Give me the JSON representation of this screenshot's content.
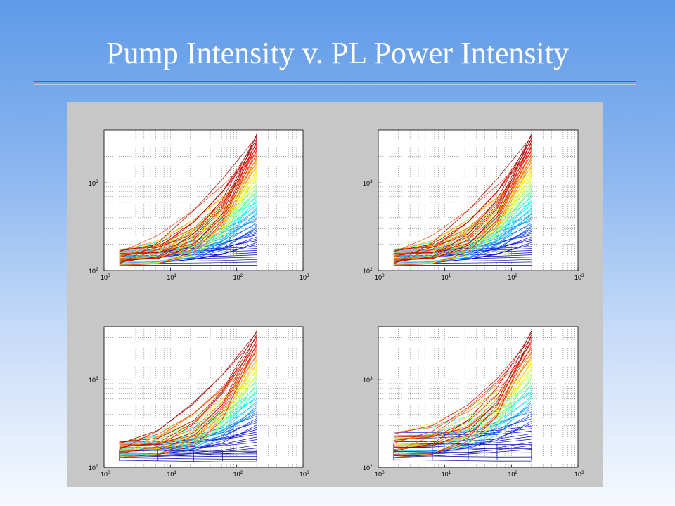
{
  "slide": {
    "title": "Pump Intensity v. PL Power Intensity",
    "rule_colors": [
      "#d3332b",
      "#b8c8e2"
    ]
  },
  "figure": {
    "background": "#c7c7c7",
    "axes_background": "#ffffff",
    "grid": "dotted major and minor (log)"
  },
  "chart_data": [
    {
      "type": "line",
      "panel": "top-left",
      "xscale": "log",
      "yscale": "log",
      "xlim": [
        1,
        1000
      ],
      "ylim": [
        100,
        4000
      ],
      "xticks": [
        1,
        10,
        100,
        1000
      ],
      "xtick_labels": [
        "10^0",
        "10^1",
        "10^2",
        "10^3"
      ],
      "yticks": [
        100,
        1000
      ],
      "ytick_labels": [
        "10^2",
        "10^3"
      ],
      "x_breaks": [
        1.7,
        6.5,
        22.5,
        61,
        200
      ],
      "y_start_range": [
        115,
        175
      ],
      "y_end_range": [
        115,
        3600
      ],
      "box_y_range": [],
      "colormap": "jet",
      "n_curves": 80
    },
    {
      "type": "line",
      "panel": "top-right",
      "xscale": "log",
      "yscale": "log",
      "xlim": [
        1,
        1000
      ],
      "ylim": [
        100,
        4000
      ],
      "xticks": [
        1,
        10,
        100,
        1000
      ],
      "xtick_labels": [
        "10^0",
        "10^1",
        "10^2",
        "10^3"
      ],
      "yticks": [
        100,
        1000
      ],
      "ytick_labels": [
        "10^2",
        "10^3"
      ],
      "x_breaks": [
        1.7,
        6.5,
        22.5,
        61,
        200
      ],
      "y_start_range": [
        115,
        175
      ],
      "y_end_range": [
        115,
        3600
      ],
      "box_y_range": [],
      "colormap": "jet",
      "n_curves": 80
    },
    {
      "type": "line",
      "panel": "bottom-left",
      "xscale": "log",
      "yscale": "log",
      "xlim": [
        1,
        1000
      ],
      "ylim": [
        100,
        4000
      ],
      "xticks": [
        1,
        10,
        100,
        1000
      ],
      "xtick_labels": [
        "10^0",
        "10^1",
        "10^2",
        "10^3"
      ],
      "yticks": [
        100,
        1000
      ],
      "ytick_labels": [
        "10^2",
        "10^3"
      ],
      "x_breaks": [
        1.7,
        6.5,
        22.5,
        61,
        200
      ],
      "y_start_range": [
        130,
        195
      ],
      "y_end_range": [
        150,
        3600
      ],
      "box_y_range": [
        118,
        155
      ],
      "colormap": "jet",
      "n_curves": 60
    },
    {
      "type": "line",
      "panel": "bottom-right",
      "xscale": "log",
      "yscale": "log",
      "xlim": [
        1,
        1000
      ],
      "ylim": [
        100,
        4000
      ],
      "xticks": [
        1,
        10,
        100,
        1000
      ],
      "xtick_labels": [
        "10^0",
        "10^1",
        "10^2",
        "10^3"
      ],
      "yticks": [
        100,
        1000
      ],
      "ytick_labels": [
        "10^2",
        "10^3"
      ],
      "x_breaks": [
        1.7,
        6.5,
        22.5,
        61,
        200
      ],
      "y_start_range": [
        130,
        250
      ],
      "y_end_range": [
        160,
        3600
      ],
      "box_y_range": [
        120,
        185
      ],
      "colormap": "jet",
      "n_curves": 55
    }
  ]
}
